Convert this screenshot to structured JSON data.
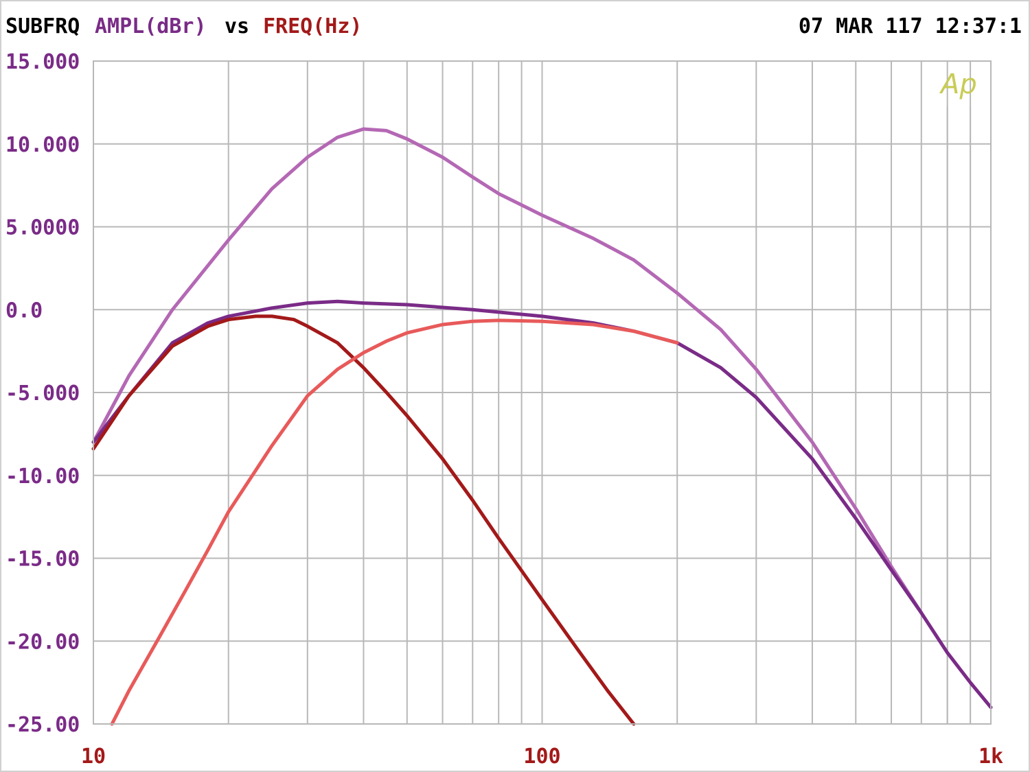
{
  "header": {
    "title": "SUBFRQ",
    "y_quantity": "AMPL(dBr)",
    "vs": "vs",
    "x_quantity": "FREQ(Hz)",
    "timestamp": "07 MAR 117 12:37:1"
  },
  "logo": {
    "text": "Ap",
    "color": "#c8cc55"
  },
  "colors": {
    "frame": "#000000",
    "grid": "#b8b8b8",
    "y_label": "#7a2b87",
    "x_label": "#a31919",
    "header_text": "#000000"
  },
  "chart_data": {
    "type": "line",
    "x_scale": "log",
    "xlim": [
      10,
      1000
    ],
    "ylim": [
      -25,
      15
    ],
    "grid": true,
    "x_ticks": [
      {
        "value": 10,
        "label": "10"
      },
      {
        "value": 100,
        "label": "100"
      },
      {
        "value": 1000,
        "label": "1k"
      }
    ],
    "y_ticks": [
      {
        "value": 15,
        "label": "15.000"
      },
      {
        "value": 10,
        "label": "10.000"
      },
      {
        "value": 5,
        "label": "5.0000"
      },
      {
        "value": 0,
        "label": "0.0"
      },
      {
        "value": -5,
        "label": "-5.000"
      },
      {
        "value": -10,
        "label": "-10.00"
      },
      {
        "value": -15,
        "label": "-15.00"
      },
      {
        "value": -20,
        "label": "-20.00"
      },
      {
        "value": -25,
        "label": "-25.00"
      }
    ],
    "series": [
      {
        "color": "#b468b4",
        "points": [
          [
            10,
            -8.0
          ],
          [
            12,
            -4.0
          ],
          [
            15,
            0.0
          ],
          [
            20,
            4.2
          ],
          [
            25,
            7.3
          ],
          [
            30,
            9.2
          ],
          [
            35,
            10.4
          ],
          [
            40,
            10.9
          ],
          [
            45,
            10.8
          ],
          [
            50,
            10.3
          ],
          [
            60,
            9.2
          ],
          [
            70,
            8.0
          ],
          [
            80,
            7.0
          ],
          [
            100,
            5.7
          ],
          [
            130,
            4.3
          ],
          [
            160,
            3.0
          ],
          [
            200,
            1.0
          ],
          [
            250,
            -1.2
          ],
          [
            300,
            -3.6
          ],
          [
            400,
            -8.0
          ],
          [
            500,
            -12.0
          ],
          [
            600,
            -15.5
          ],
          [
            700,
            -18.3
          ]
        ]
      },
      {
        "color": "#7a2b87",
        "points": [
          [
            10,
            -8.0
          ],
          [
            12,
            -5.2
          ],
          [
            15,
            -2.0
          ],
          [
            18,
            -0.8
          ],
          [
            20,
            -0.4
          ],
          [
            25,
            0.1
          ],
          [
            30,
            0.4
          ],
          [
            35,
            0.5
          ],
          [
            40,
            0.4
          ],
          [
            50,
            0.3
          ],
          [
            70,
            0.0
          ],
          [
            100,
            -0.4
          ],
          [
            130,
            -0.8
          ],
          [
            160,
            -1.3
          ],
          [
            200,
            -2.0
          ],
          [
            250,
            -3.5
          ],
          [
            300,
            -5.3
          ],
          [
            400,
            -9.0
          ],
          [
            500,
            -12.6
          ],
          [
            600,
            -15.7
          ],
          [
            700,
            -18.3
          ],
          [
            800,
            -20.7
          ],
          [
            900,
            -22.5
          ],
          [
            1000,
            -24.0
          ]
        ]
      },
      {
        "color": "#a31919",
        "points": [
          [
            10,
            -8.4
          ],
          [
            12,
            -5.2
          ],
          [
            15,
            -2.2
          ],
          [
            18,
            -1.0
          ],
          [
            20,
            -0.6
          ],
          [
            23,
            -0.4
          ],
          [
            25,
            -0.4
          ],
          [
            28,
            -0.6
          ],
          [
            30,
            -1.0
          ],
          [
            35,
            -2.0
          ],
          [
            40,
            -3.5
          ],
          [
            45,
            -5.0
          ],
          [
            50,
            -6.4
          ],
          [
            60,
            -9.0
          ],
          [
            70,
            -11.5
          ],
          [
            80,
            -13.8
          ],
          [
            100,
            -17.5
          ],
          [
            120,
            -20.5
          ],
          [
            140,
            -23.0
          ],
          [
            160,
            -25.0
          ]
        ]
      },
      {
        "color": "#e85a5a",
        "points": [
          [
            11,
            -25.0
          ],
          [
            12,
            -23.0
          ],
          [
            14,
            -19.8
          ],
          [
            16,
            -17.0
          ],
          [
            18,
            -14.5
          ],
          [
            20,
            -12.2
          ],
          [
            25,
            -8.2
          ],
          [
            30,
            -5.2
          ],
          [
            35,
            -3.6
          ],
          [
            40,
            -2.6
          ],
          [
            45,
            -1.9
          ],
          [
            50,
            -1.4
          ],
          [
            60,
            -0.9
          ],
          [
            70,
            -0.7
          ],
          [
            80,
            -0.65
          ],
          [
            100,
            -0.7
          ],
          [
            130,
            -0.9
          ],
          [
            160,
            -1.3
          ],
          [
            200,
            -2.0
          ]
        ]
      }
    ]
  }
}
